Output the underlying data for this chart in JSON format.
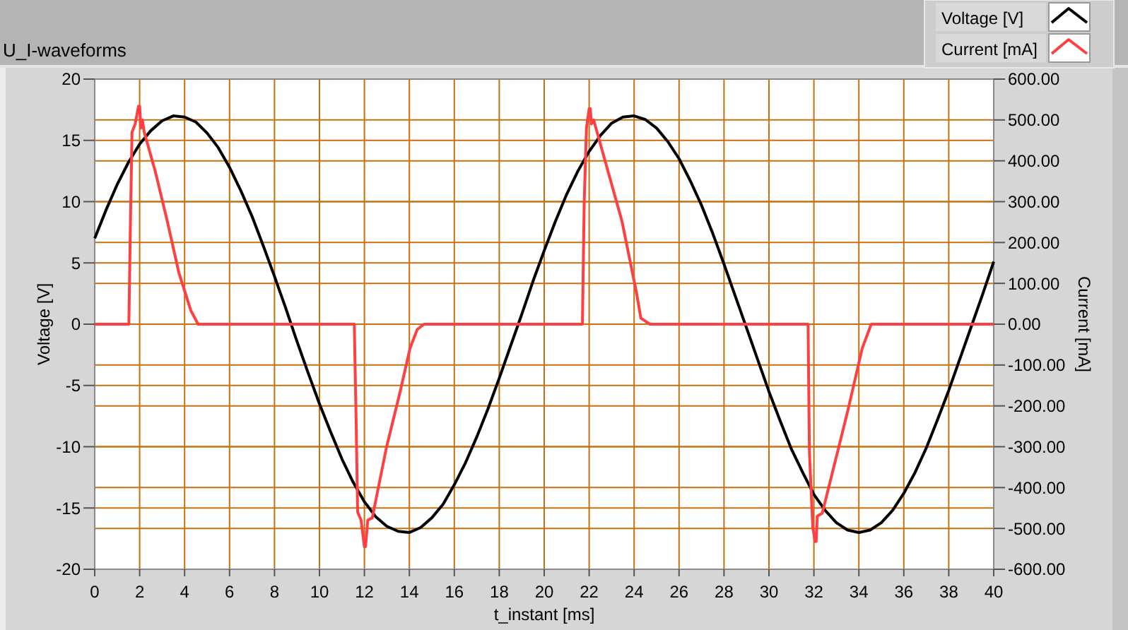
{
  "chart_data": {
    "type": "line",
    "title": "U_I-waveforms",
    "xlabel": "t_instant [ms]",
    "ylabel": "Voltage [V]",
    "y2label": "Current [mA]",
    "xlim": [
      0,
      40
    ],
    "xticks": [
      0,
      2,
      4,
      6,
      8,
      10,
      12,
      14,
      16,
      18,
      20,
      22,
      24,
      26,
      28,
      30,
      32,
      34,
      36,
      38,
      40
    ],
    "ylim": [
      -20,
      20
    ],
    "yticks": [
      -20,
      -15,
      -10,
      -5,
      0,
      5,
      10,
      15,
      20
    ],
    "y2lim": [
      -600,
      600
    ],
    "y2ticks": [
      {
        "value": -600,
        "label": "-600.00"
      },
      {
        "value": -500,
        "label": "-500.00"
      },
      {
        "value": -400,
        "label": "-400.00"
      },
      {
        "value": -300,
        "label": "-300.00"
      },
      {
        "value": -200,
        "label": "-200.00"
      },
      {
        "value": -100,
        "label": "-100.00"
      },
      {
        "value": 0,
        "label": "0.00"
      },
      {
        "value": 100,
        "label": "100.00"
      },
      {
        "value": 200,
        "label": "200.00"
      },
      {
        "value": 300,
        "label": "300.00"
      },
      {
        "value": 400,
        "label": "400.00"
      },
      {
        "value": 500,
        "label": "500.00"
      },
      {
        "value": 600,
        "label": "600.00"
      }
    ],
    "grid": true,
    "legend": "top right",
    "series": [
      {
        "name": "Voltage [V]",
        "color": "#000000",
        "x": [
          0,
          0.5,
          1,
          1.5,
          2,
          2.5,
          3,
          3.5,
          4,
          4.5,
          5,
          5.5,
          6,
          6.5,
          7,
          7.5,
          8,
          8.5,
          9,
          9.5,
          10,
          10.5,
          11,
          11.5,
          12,
          12.5,
          13,
          13.5,
          14,
          14.5,
          15,
          15.5,
          16,
          16.5,
          17,
          17.5,
          18,
          18.5,
          19,
          19.5,
          20,
          20.5,
          21,
          21.5,
          22,
          22.5,
          23,
          23.5,
          24,
          24.5,
          25,
          25.5,
          26,
          26.5,
          27,
          27.5,
          28,
          28.5,
          29,
          29.5,
          30,
          30.5,
          31,
          31.5,
          32,
          32.5,
          33,
          33.5,
          34,
          34.5,
          35,
          35.5,
          36,
          36.5,
          37,
          37.5,
          38,
          38.5,
          39,
          39.5,
          40
        ],
        "values": [
          7.0,
          9.3,
          11.4,
          13.2,
          14.7,
          15.8,
          16.6,
          17.0,
          16.9,
          16.5,
          15.6,
          14.4,
          12.8,
          10.9,
          8.8,
          6.4,
          3.9,
          1.3,
          -1.4,
          -4.0,
          -6.5,
          -8.8,
          -11.0,
          -12.9,
          -14.5,
          -15.7,
          -16.5,
          -16.9,
          -17.0,
          -16.6,
          -15.8,
          -14.7,
          -13.1,
          -11.3,
          -9.2,
          -6.9,
          -4.4,
          -1.8,
          0.8,
          3.5,
          6.0,
          8.4,
          10.6,
          12.5,
          14.1,
          15.4,
          16.4,
          16.9,
          17.0,
          16.7,
          16.0,
          14.9,
          13.5,
          11.7,
          9.7,
          7.4,
          4.9,
          2.3,
          -0.3,
          -2.9,
          -5.5,
          -7.9,
          -10.2,
          -12.1,
          -13.9,
          -15.2,
          -16.2,
          -16.8,
          -17.0,
          -16.8,
          -16.2,
          -15.2,
          -13.8,
          -12.1,
          -10.1,
          -7.8,
          -5.4,
          -2.8,
          -0.2,
          2.4,
          5.1
        ]
      },
      {
        "name": "Current [mA]",
        "color": "#ff4040",
        "axis": "y2",
        "x": [
          0,
          1.52,
          1.58,
          1.66,
          1.8,
          1.95,
          2.0,
          2.05,
          2.12,
          2.2,
          2.7,
          3.23,
          3.75,
          4.28,
          4.6,
          11.55,
          11.62,
          11.7,
          11.85,
          12.0,
          12.05,
          12.15,
          12.35,
          12.98,
          13.6,
          14.03,
          14.35,
          14.65,
          21.7,
          21.78,
          21.88,
          22.0,
          22.05,
          22.1,
          22.2,
          23.46,
          24.1,
          24.3,
          24.7,
          31.74,
          31.8,
          31.95,
          32.05,
          32.1,
          32.15,
          32.37,
          33.1,
          33.52,
          34.15,
          34.55,
          40
        ],
        "values": [
          0,
          0,
          217,
          470,
          490,
          534,
          534,
          480,
          500,
          471,
          373,
          252,
          125,
          33,
          0,
          0,
          -200,
          -460,
          -480,
          -545,
          -545,
          -480,
          -474,
          -302,
          -163,
          -59,
          -13,
          0,
          0,
          300,
          480,
          528,
          528,
          490,
          500,
          252,
          79,
          15,
          0,
          0,
          -313,
          -497,
          -532,
          -532,
          -470,
          -463,
          -302,
          -209,
          -59,
          0,
          0
        ]
      }
    ]
  }
}
